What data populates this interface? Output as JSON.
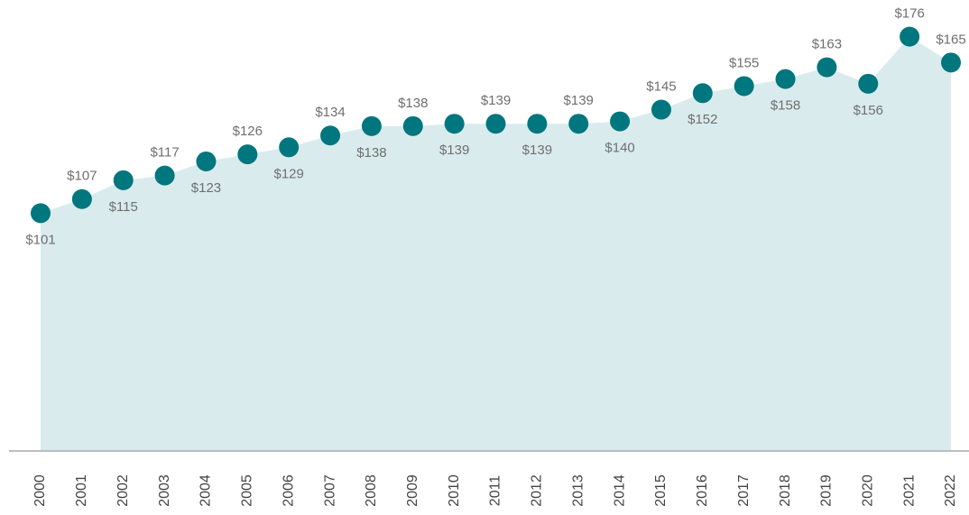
{
  "chart_data": {
    "type": "area",
    "categories": [
      "2000",
      "2001",
      "2002",
      "2003",
      "2004",
      "2005",
      "2006",
      "2007",
      "2008",
      "2009",
      "2010",
      "2011",
      "2012",
      "2013",
      "2014",
      "2015",
      "2016",
      "2017",
      "2018",
      "2019",
      "2020",
      "2021",
      "2022"
    ],
    "values": [
      101,
      107,
      115,
      117,
      123,
      126,
      129,
      134,
      138,
      138,
      139,
      139,
      139,
      139,
      140,
      145,
      152,
      155,
      158,
      163,
      156,
      176,
      165
    ],
    "value_labels": [
      "$101",
      "$107",
      "$115",
      "$117",
      "$123",
      "$126",
      "$129",
      "$134",
      "$138",
      "$138",
      "$139",
      "$139",
      "$139",
      "$139",
      "$140",
      "$145",
      "$152",
      "$155",
      "$158",
      "$163",
      "$156",
      "$176",
      "$165"
    ],
    "color": "#00767e",
    "fill": "#d9ebed"
  }
}
